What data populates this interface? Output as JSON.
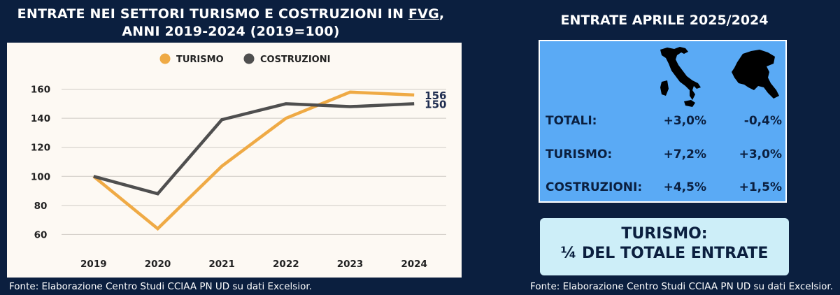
{
  "left": {
    "title_line1_prefix": "ENTRATE NEI SETTORI TURISMO E COSTRUZIONI IN ",
    "title_line1_link": "FVG",
    "title_line1_suffix": ",",
    "title_line2": "ANNI 2019-2024 (2019=100)",
    "source": "Fonte: Elaborazione Centro Studi CCIAA PN UD su dati Excelsior."
  },
  "chart_data": {
    "type": "line",
    "x": [
      "2019",
      "2020",
      "2021",
      "2022",
      "2023",
      "2024"
    ],
    "series": [
      {
        "name": "TURISMO",
        "color": "#efaa45",
        "values": [
          100,
          64,
          107,
          140,
          158,
          156
        ]
      },
      {
        "name": "COSTRUZIONI",
        "color": "#4f4f4f",
        "values": [
          100,
          88,
          139,
          150,
          148,
          150
        ]
      }
    ],
    "end_labels": [
      "156",
      "150"
    ],
    "yticks": [
      60,
      80,
      100,
      120,
      140,
      160
    ],
    "ylim": [
      52,
      168
    ],
    "grid": true,
    "legend": "top-center"
  },
  "right": {
    "title": "ENTRATE APRILE 2025/2024",
    "rows": [
      {
        "label": "TOTALI:",
        "italy": "+3,0%",
        "fvg": "-0,4%"
      },
      {
        "label": "TURISMO:",
        "italy": "+7,2%",
        "fvg": "+3,0%"
      },
      {
        "label": "COSTRUZIONI:",
        "italy": "+4,5%",
        "fvg": "+1,5%"
      }
    ],
    "icons": [
      "italy-map-icon",
      "fvg-map-icon"
    ],
    "callout_line1": "TURISMO:",
    "callout_line2": "¼ DEL TOTALE ENTRATE",
    "source": "Fonte: Elaborazione Centro Studi CCIAA PN UD su dati Excelsior."
  },
  "colors": {
    "background": "#0b1f3f",
    "panel": "#fdf9f3",
    "table": "#5aaaf5",
    "callout": "#cdeef8",
    "turismo": "#efaa45",
    "costruzioni": "#4f4f4f"
  }
}
